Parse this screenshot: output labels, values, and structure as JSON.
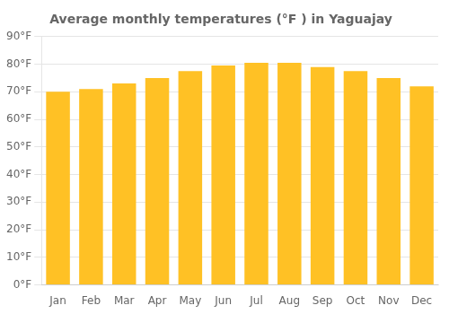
{
  "chart_data": {
    "type": "bar",
    "title": "Average monthly temperatures (°F ) in Yaguajay",
    "categories": [
      "Jan",
      "Feb",
      "Mar",
      "Apr",
      "May",
      "Jun",
      "Jul",
      "Aug",
      "Sep",
      "Oct",
      "Nov",
      "Dec"
    ],
    "values": [
      70,
      71,
      73,
      75,
      77.5,
      79.5,
      80.5,
      80.5,
      79,
      77.5,
      75,
      72
    ],
    "color": "#FFC125",
    "ylim": [
      0,
      90
    ],
    "yticks": [
      {
        "value": 0,
        "label": "0°F"
      },
      {
        "value": 10,
        "label": "10°F"
      },
      {
        "value": 20,
        "label": "20°F"
      },
      {
        "value": 30,
        "label": "30°F"
      },
      {
        "value": 40,
        "label": "40°F"
      },
      {
        "value": 50,
        "label": "50°F"
      },
      {
        "value": 60,
        "label": "60°F"
      },
      {
        "value": 70,
        "label": "70°F"
      },
      {
        "value": 80,
        "label": "80°F"
      },
      {
        "value": 90,
        "label": "90°F"
      }
    ],
    "grid": true
  }
}
